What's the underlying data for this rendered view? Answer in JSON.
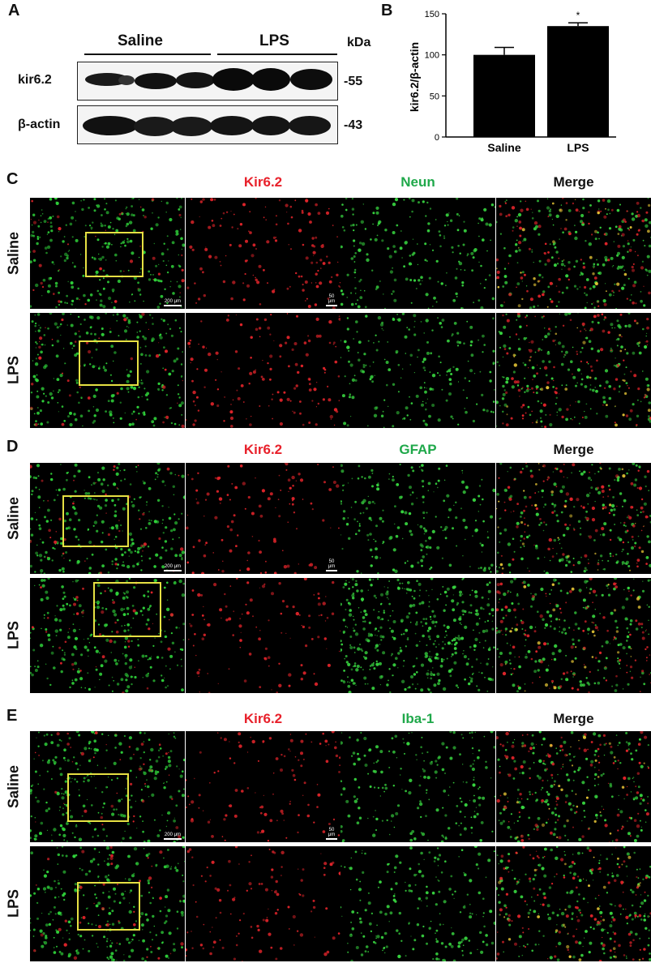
{
  "panels": {
    "A": "A",
    "B": "B",
    "C": "C",
    "D": "D",
    "E": "E"
  },
  "western": {
    "group_saline": "Saline",
    "group_lps": "LPS",
    "kda_label": "kDa",
    "rows": [
      {
        "protein": "kir6.2",
        "mw": "-55"
      },
      {
        "protein": "β-actin",
        "mw": "-43"
      }
    ]
  },
  "chart_data": {
    "type": "bar",
    "categories": [
      "Saline",
      "LPS"
    ],
    "values": [
      100,
      135
    ],
    "errors": [
      9,
      4
    ],
    "ylabel": "kir6.2/β-actin",
    "ylim": [
      0,
      150
    ],
    "yticks": [
      0,
      50,
      100,
      150
    ],
    "annotations": [
      {
        "category": "LPS",
        "text": "*"
      }
    ],
    "bar_color": "#000000"
  },
  "figures": [
    {
      "id": "C",
      "headers": [
        "Kir6.2",
        "Neun",
        "Merge"
      ],
      "rows": [
        "Saline",
        "LPS"
      ],
      "scale_overview": "200 μm",
      "scale_detail": "50 μm"
    },
    {
      "id": "D",
      "headers": [
        "Kir6.2",
        "GFAP",
        "Merge"
      ],
      "rows": [
        "Saline",
        "LPS"
      ],
      "scale_overview": "200 μm",
      "scale_detail": "50 μm"
    },
    {
      "id": "E",
      "headers": [
        "Kir6.2",
        "Iba-1",
        "Merge"
      ],
      "rows": [
        "Saline",
        "LPS"
      ],
      "scale_overview": "200 μm",
      "scale_detail": "50 μm"
    }
  ]
}
